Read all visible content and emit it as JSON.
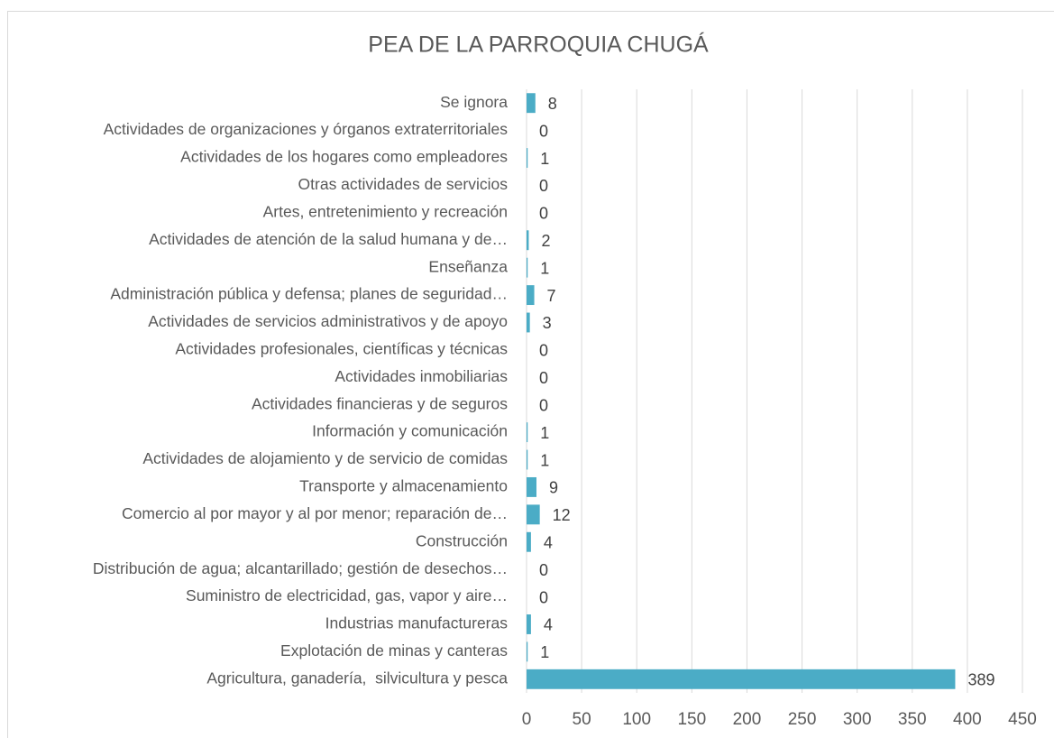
{
  "chart_data": {
    "type": "hbar",
    "title": "PEA DE LA PARROQUIA CHUGÁ",
    "categories": [
      "Agricultura, ganadería,  silvicultura y pesca",
      "Explotación de minas y canteras",
      "Industrias manufactureras",
      "Suministro de electricidad, gas, vapor y aire…",
      "Distribución de agua; alcantarillado; gestión de desechos…",
      "Construcción",
      "Comercio al por mayor y al por menor; reparación de…",
      "Transporte y almacenamiento",
      "Actividades de alojamiento y de servicio de comidas",
      "Información y comunicación",
      "Actividades financieras y de seguros",
      "Actividades inmobiliarias",
      "Actividades profesionales, científicas y técnicas",
      "Actividades de servicios administrativos y de apoyo",
      "Administración pública y defensa; planes de seguridad…",
      "Enseñanza",
      "Actividades de atención de la salud humana y de…",
      "Artes, entretenimiento y recreación",
      "Otras actividades de servicios",
      "Actividades de los hogares como empleadores",
      "Actividades de organizaciones y órganos extraterritoriales",
      "Se ignora"
    ],
    "values": [
      389,
      1,
      4,
      0,
      0,
      4,
      12,
      9,
      1,
      1,
      0,
      0,
      0,
      3,
      7,
      1,
      2,
      0,
      0,
      1,
      0,
      8
    ],
    "color": "#4bacc6",
    "xlim": [
      0,
      450
    ],
    "xticks": [
      0,
      50,
      100,
      150,
      200,
      250,
      300,
      350,
      400,
      450
    ],
    "grid": true
  }
}
